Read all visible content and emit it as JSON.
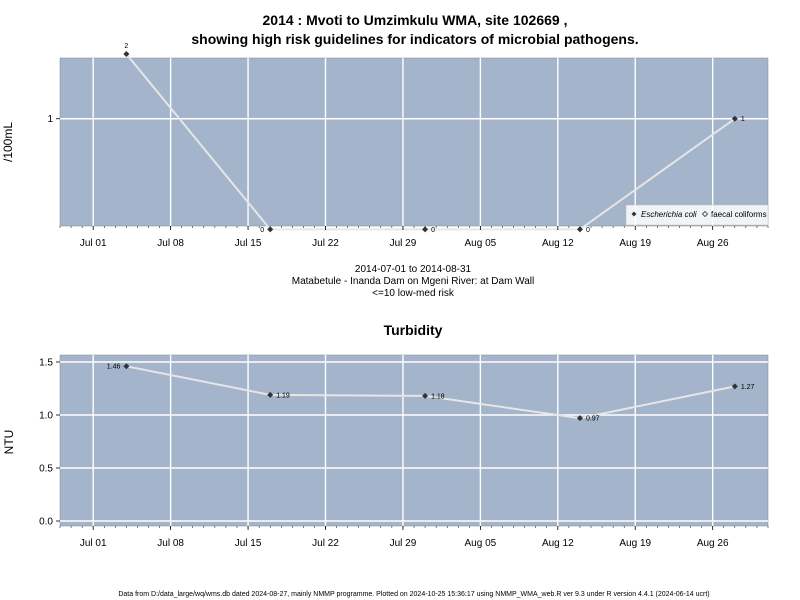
{
  "chart_data": [
    {
      "type": "line",
      "title_line1": "2014 : Mvoti to Umzimkulu WMA, site 102669 ,",
      "title_line2": "showing high risk guidelines for indicators of microbial pathogens.",
      "ylabel": "/100mL",
      "y_scale": "log",
      "y_ticks": [
        "1"
      ],
      "x_ticks": [
        "Jul 01",
        "Jul 08",
        "Jul 15",
        "Jul 22",
        "Jul 29",
        "Aug 05",
        "Aug 12",
        "Aug 19",
        "Aug 26"
      ],
      "x_range": [
        "2014-06-28",
        "2014-08-31"
      ],
      "grid": true,
      "legend_position": "bottom-right",
      "legend": [
        {
          "label": "Escherichia coli",
          "marker": "filled-diamond",
          "color": "#333333"
        },
        {
          "label": "faecal coliforms",
          "marker": "open-diamond",
          "color": "#333333"
        }
      ],
      "series": [
        {
          "name": "Escherichia coli",
          "points": [
            {
              "x": "2014-07-04",
              "y": 2,
              "label": "2"
            },
            {
              "x": "2014-07-17",
              "y": 0,
              "label": "0"
            },
            {
              "x": "2014-07-31",
              "y": 0,
              "label": "0"
            },
            {
              "x": "2014-08-14",
              "y": 0,
              "label": "0"
            },
            {
              "x": "2014-08-28",
              "y": 1,
              "label": "1"
            }
          ]
        }
      ],
      "caption_line1": "2014-07-01 to 2014-08-31",
      "caption_line2": "Matabetule - Inanda Dam on Mgeni River: at Dam Wall",
      "caption_line3": "<=10 low-med risk"
    },
    {
      "type": "line",
      "title": "Turbidity",
      "ylabel": "NTU",
      "ylim": [
        0,
        1.5
      ],
      "y_ticks": [
        "0.0",
        "0.5",
        "1.0",
        "1.5"
      ],
      "x_ticks": [
        "Jul 01",
        "Jul 08",
        "Jul 15",
        "Jul 22",
        "Jul 29",
        "Aug 05",
        "Aug 12",
        "Aug 19",
        "Aug 26"
      ],
      "x_range": [
        "2014-06-28",
        "2014-08-31"
      ],
      "grid": true,
      "series": [
        {
          "name": "",
          "points": [
            {
              "x": "2014-07-04",
              "y": 1.46,
              "label": "1.46"
            },
            {
              "x": "2014-07-17",
              "y": 1.19,
              "label": "1.19"
            },
            {
              "x": "2014-07-31",
              "y": 1.18,
              "label": "1.18"
            },
            {
              "x": "2014-08-14",
              "y": 0.97,
              "label": "0.97"
            },
            {
              "x": "2014-08-28",
              "y": 1.27,
              "label": "1.27"
            }
          ]
        }
      ]
    }
  ],
  "footer": "Data from D:/data_large/wq/wms.db dated 2024-08-27, mainly NMMP programme. Plotted on 2024-10-25 15:36:17 using NMMP_WMA_web.R ver 9.3 under R version 4.4.1 (2024-06-14 ucrt)",
  "colors": {
    "panel_bg": "#a3b4cb",
    "grid": "#ffffff",
    "line": "#e6e6e6",
    "point": "#333333"
  }
}
